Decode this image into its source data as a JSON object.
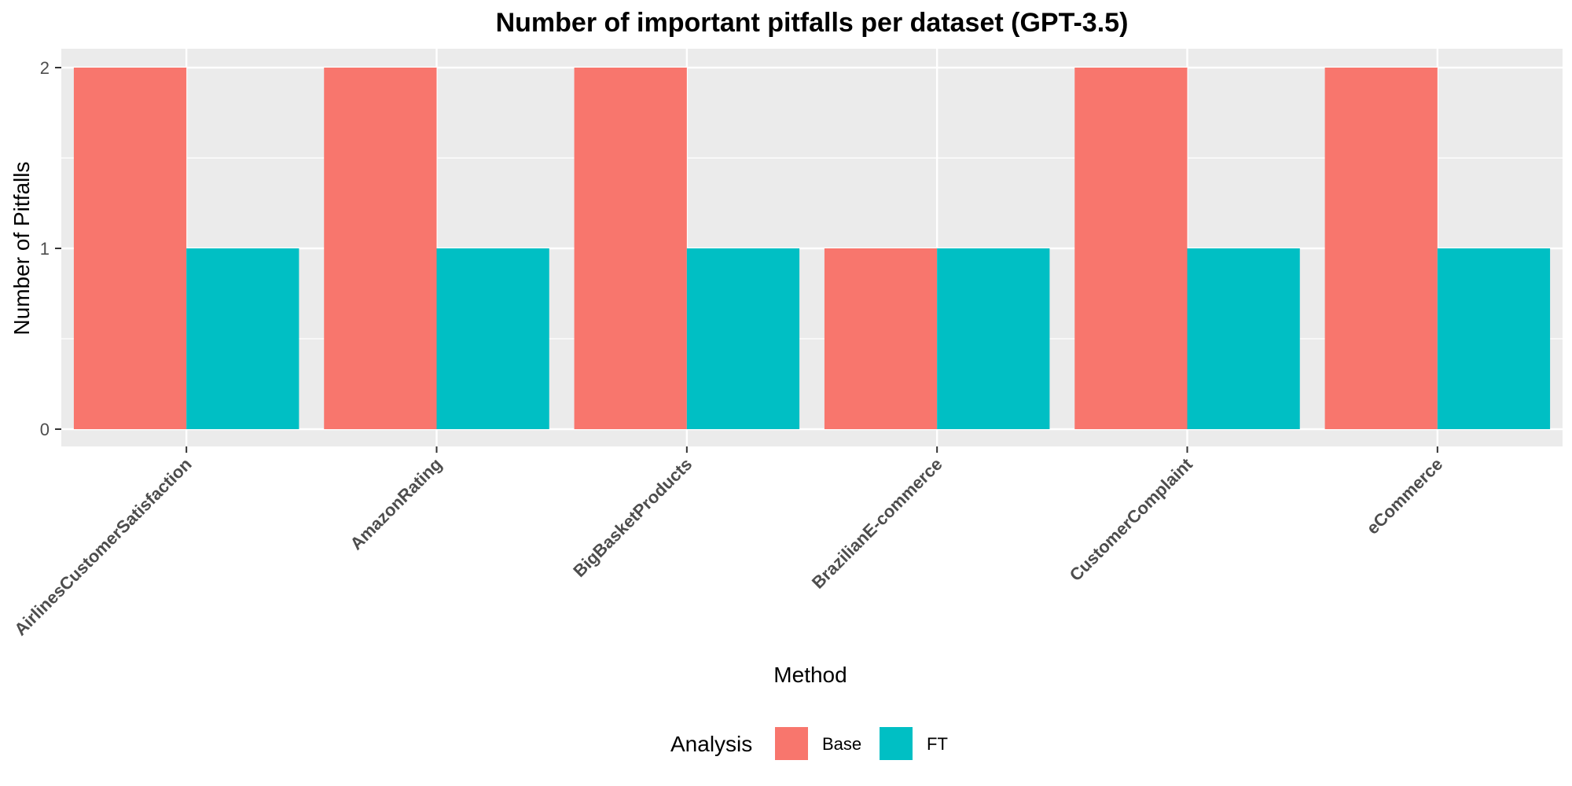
{
  "chart_data": {
    "type": "bar",
    "title": "Number of important pitfalls per dataset (GPT-3.5)",
    "xlabel": "Method",
    "ylabel": "Number of Pitfalls",
    "categories": [
      "AirlinesCustomerSatisfaction",
      "AmazonRating",
      "BigBasketProducts",
      "BrazilianE-commerce",
      "CustomerComplaint",
      "eCommerce"
    ],
    "series": [
      {
        "name": "Base",
        "color": "#F8766D",
        "values": [
          2,
          2,
          2,
          1,
          2,
          2
        ]
      },
      {
        "name": "FT",
        "color": "#00BFC4",
        "values": [
          1,
          1,
          1,
          1,
          1,
          1
        ]
      }
    ],
    "ylim": [
      0,
      2.1
    ],
    "yticks": [
      0,
      1,
      2
    ],
    "grid": true,
    "legend": {
      "title": "Analysis",
      "position": "bottom"
    }
  }
}
